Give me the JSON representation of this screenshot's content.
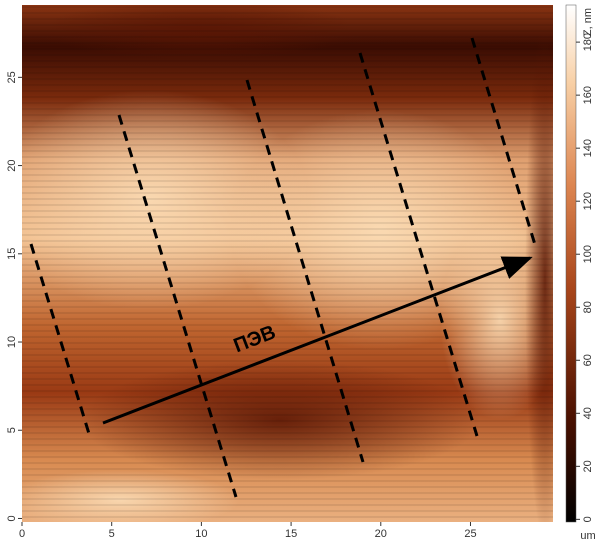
{
  "chart_data": {
    "type": "image",
    "xlim": [
      0,
      29.6
    ],
    "xticks": [
      0,
      5,
      10,
      15,
      20,
      25
    ],
    "x_unit": "um",
    "ylim": [
      -0.2,
      29.1
    ],
    "yticks": [
      0,
      5,
      10,
      15,
      20,
      25
    ],
    "y_unit": "um",
    "colorbar": {
      "label": "Z, nm",
      "lim": [
        -1,
        194
      ],
      "ticks": [
        0,
        20,
        40,
        60,
        80,
        100,
        120,
        140,
        160,
        180
      ]
    },
    "annotation": "ПЭВ"
  }
}
